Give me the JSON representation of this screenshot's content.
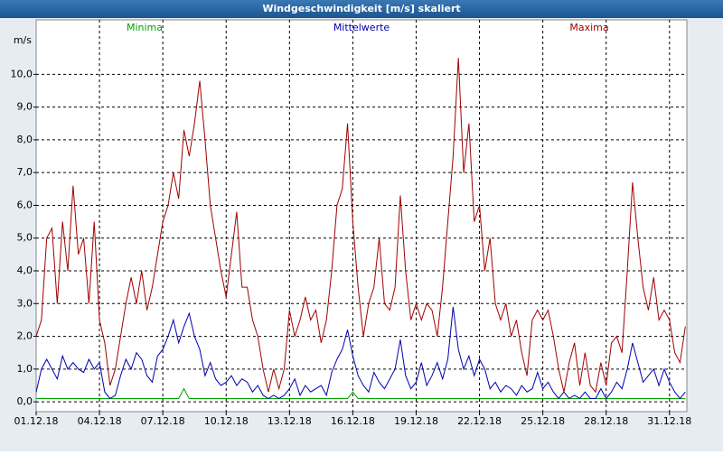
{
  "chart_data": {
    "type": "line",
    "title": "Windgeschwindigkeit [m/s] skaliert",
    "y_label": "m/s",
    "ylim": [
      -0.3,
      11.25
    ],
    "yticks": [
      {
        "value": 0,
        "label": "0,0"
      },
      {
        "value": 1,
        "label": "1,0"
      },
      {
        "value": 2,
        "label": "2,0"
      },
      {
        "value": 3,
        "label": "3,0"
      },
      {
        "value": 4,
        "label": "4,0"
      },
      {
        "value": 5,
        "label": "5,0"
      },
      {
        "value": 6,
        "label": "6,0"
      },
      {
        "value": 7,
        "label": "7,0"
      },
      {
        "value": 8,
        "label": "8,0"
      },
      {
        "value": 9,
        "label": "9,0"
      },
      {
        "value": 10,
        "label": "10,0"
      }
    ],
    "grid": true,
    "categories": [
      "01.12.18",
      null,
      null,
      null,
      null,
      null,
      null,
      null,
      null,
      null,
      null,
      null,
      "04.12.18",
      null,
      null,
      null,
      null,
      null,
      null,
      null,
      null,
      null,
      null,
      null,
      "07.12.18",
      null,
      null,
      null,
      null,
      null,
      null,
      null,
      null,
      null,
      null,
      null,
      "10.12.18",
      null,
      null,
      null,
      null,
      null,
      null,
      null,
      null,
      null,
      null,
      null,
      "13.12.18",
      null,
      null,
      null,
      null,
      null,
      null,
      null,
      null,
      null,
      null,
      null,
      "16.12.18",
      null,
      null,
      null,
      null,
      null,
      null,
      null,
      null,
      null,
      null,
      null,
      "19.12.18",
      null,
      null,
      null,
      null,
      null,
      null,
      null,
      null,
      null,
      null,
      null,
      "22.12.18",
      null,
      null,
      null,
      null,
      null,
      null,
      null,
      null,
      null,
      null,
      null,
      "25.12.18",
      null,
      null,
      null,
      null,
      null,
      null,
      null,
      null,
      null,
      null,
      null,
      "28.12.18",
      null,
      null,
      null,
      null,
      null,
      null,
      null,
      null,
      null,
      null,
      null,
      "31.12.18",
      null,
      null,
      null
    ],
    "series": [
      {
        "name": "Minima",
        "color": "#00a000",
        "values": [
          0.1,
          0.1,
          0.1,
          0.1,
          0.1,
          0.1,
          0.1,
          0.1,
          0.1,
          0.1,
          0.1,
          0.1,
          0.1,
          0.1,
          0.1,
          0.1,
          0.1,
          0.1,
          0.1,
          0.1,
          0.1,
          0.1,
          0.1,
          0.1,
          0.1,
          0.1,
          0.1,
          0.1,
          0.4,
          0.1,
          0.1,
          0.1,
          0.1,
          0.1,
          0.1,
          0.1,
          0.1,
          0.1,
          0.1,
          0.1,
          0.1,
          0.1,
          0.1,
          0.1,
          0.1,
          0.1,
          0.1,
          0.1,
          0.1,
          0.1,
          0.1,
          0.1,
          0.1,
          0.1,
          0.1,
          0.1,
          0.1,
          0.1,
          0.1,
          0.1,
          0.3,
          0.1,
          0.1,
          0.1,
          0.1,
          0.1,
          0.1,
          0.1,
          0.1,
          0.1,
          0.1,
          0.1,
          0.1,
          0.1,
          0.1,
          0.1,
          0.1,
          0.1,
          0.1,
          0.1,
          0.1,
          0.1,
          0.1,
          0.1,
          0.1,
          0.1,
          0.1,
          0.1,
          0.1,
          0.1,
          0.1,
          0.1,
          0.1,
          0.1,
          0.1,
          0.1,
          0.1,
          0.1,
          0.1,
          0.1,
          0.1,
          0.1,
          0.1,
          0.1,
          0.1,
          0.1,
          0.1,
          0.1,
          0.1,
          0.1,
          0.1,
          0.1,
          0.1,
          0.1,
          0.1,
          0.1,
          0.1,
          0.1,
          0.1,
          0.1,
          0.1,
          0.1,
          0.1,
          0.1
        ]
      },
      {
        "name": "Mittelwerte",
        "color": "#0000b0",
        "values": [
          0.3,
          1.0,
          1.3,
          1.0,
          0.7,
          1.4,
          1.0,
          1.2,
          1.0,
          0.9,
          1.3,
          1.0,
          1.2,
          0.3,
          0.1,
          0.2,
          0.8,
          1.3,
          1.0,
          1.5,
          1.3,
          0.8,
          0.6,
          1.4,
          1.6,
          2.0,
          2.5,
          1.8,
          2.3,
          2.7,
          2.0,
          1.6,
          0.8,
          1.2,
          0.7,
          0.5,
          0.6,
          0.8,
          0.5,
          0.7,
          0.6,
          0.3,
          0.5,
          0.2,
          0.1,
          0.2,
          0.1,
          0.2,
          0.4,
          0.7,
          0.2,
          0.5,
          0.3,
          0.4,
          0.5,
          0.2,
          0.9,
          1.3,
          1.6,
          2.2,
          1.4,
          0.8,
          0.5,
          0.3,
          0.9,
          0.6,
          0.4,
          0.7,
          1.0,
          1.9,
          0.8,
          0.4,
          0.6,
          1.2,
          0.5,
          0.8,
          1.2,
          0.7,
          1.3,
          2.9,
          1.6,
          1.0,
          1.4,
          0.8,
          1.3,
          1.0,
          0.4,
          0.6,
          0.3,
          0.5,
          0.4,
          0.2,
          0.5,
          0.3,
          0.4,
          0.9,
          0.4,
          0.6,
          0.3,
          0.1,
          0.3,
          0.1,
          0.2,
          0.1,
          0.3,
          0.1,
          0.1,
          0.4,
          0.1,
          0.3,
          0.6,
          0.4,
          1.0,
          1.8,
          1.2,
          0.6,
          0.8,
          1.0,
          0.5,
          1.0,
          0.6,
          0.3,
          0.1,
          0.3
        ]
      },
      {
        "name": "Maxima",
        "color": "#a00000",
        "values": [
          2.0,
          2.5,
          5.0,
          5.3,
          3.0,
          5.5,
          4.0,
          6.6,
          4.5,
          5.0,
          3.0,
          5.5,
          2.5,
          1.8,
          0.5,
          1.0,
          2.0,
          3.0,
          3.8,
          3.0,
          4.0,
          2.8,
          3.5,
          4.5,
          5.5,
          6.0,
          7.0,
          6.2,
          8.3,
          7.5,
          8.5,
          9.8,
          8.0,
          6.0,
          5.0,
          4.0,
          3.2,
          4.5,
          5.8,
          3.5,
          3.5,
          2.5,
          2.0,
          1.0,
          0.3,
          1.0,
          0.4,
          1.0,
          2.8,
          2.0,
          2.5,
          3.2,
          2.5,
          2.8,
          1.8,
          2.5,
          4.0,
          6.0,
          6.5,
          8.5,
          5.5,
          3.5,
          2.0,
          3.0,
          3.5,
          5.0,
          3.0,
          2.8,
          3.5,
          6.3,
          4.0,
          2.5,
          3.0,
          2.5,
          3.0,
          2.8,
          2.0,
          3.5,
          5.5,
          7.5,
          10.5,
          7.0,
          8.5,
          5.5,
          6.0,
          4.0,
          5.0,
          3.0,
          2.5,
          3.0,
          2.0,
          2.5,
          1.5,
          0.8,
          2.5,
          2.8,
          2.5,
          2.8,
          2.0,
          1.0,
          0.3,
          1.2,
          1.8,
          0.5,
          1.5,
          0.5,
          0.3,
          1.2,
          0.5,
          1.8,
          2.0,
          1.5,
          4.0,
          6.7,
          5.0,
          3.5,
          2.8,
          3.8,
          2.5,
          2.8,
          2.5,
          1.5,
          1.2,
          2.3
        ]
      }
    ]
  }
}
